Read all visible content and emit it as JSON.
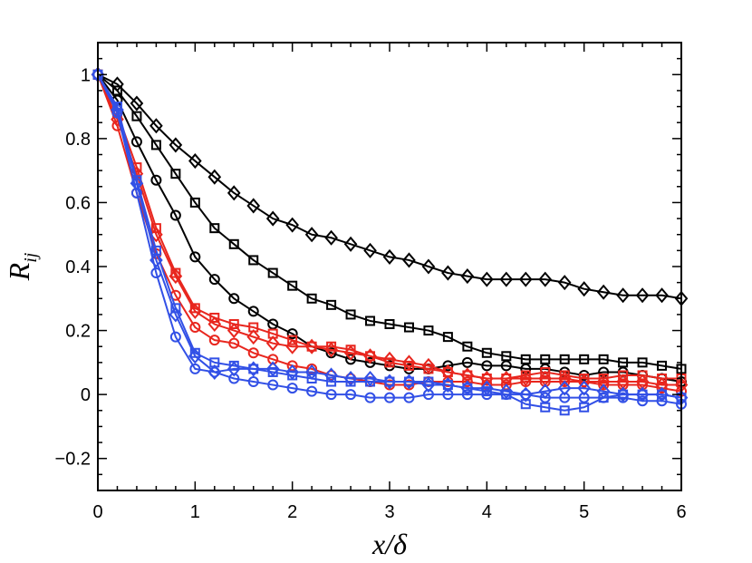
{
  "chart_data": {
    "type": "line",
    "xlabel": "x/δ",
    "ylabel": "R",
    "ylabel_subscript": "ij",
    "xlim": [
      0,
      6
    ],
    "ylim": [
      -0.3,
      1.1
    ],
    "xticks": [
      0,
      1,
      2,
      3,
      4,
      5,
      6
    ],
    "xtick_labels": [
      "0",
      "1",
      "2",
      "3",
      "4",
      "5",
      "6"
    ],
    "yticks": [
      -0.2,
      0,
      0.2,
      0.4,
      0.6,
      0.8,
      1
    ],
    "ytick_labels": [
      "−0.2",
      "0",
      "0.2",
      "0.4",
      "0.6",
      "0.8",
      "1"
    ],
    "grid": false,
    "legend": "none",
    "x": [
      0,
      0.2,
      0.4,
      0.6,
      0.8,
      1.0,
      1.2,
      1.4,
      1.6,
      1.8,
      2.0,
      2.2,
      2.4,
      2.6,
      2.8,
      3.0,
      3.2,
      3.4,
      3.6,
      3.8,
      4.0,
      4.2,
      4.4,
      4.6,
      4.8,
      5.0,
      5.2,
      5.4,
      5.6,
      5.8,
      6.0
    ],
    "series": [
      {
        "name": "black-diamond",
        "color": "#000000",
        "marker": "diamond",
        "values": [
          1.0,
          0.97,
          0.91,
          0.84,
          0.78,
          0.73,
          0.68,
          0.63,
          0.59,
          0.55,
          0.53,
          0.5,
          0.49,
          0.47,
          0.45,
          0.43,
          0.42,
          0.4,
          0.38,
          0.37,
          0.36,
          0.36,
          0.36,
          0.36,
          0.35,
          0.33,
          0.32,
          0.31,
          0.31,
          0.31,
          0.3
        ]
      },
      {
        "name": "black-square",
        "color": "#000000",
        "marker": "square",
        "values": [
          1.0,
          0.95,
          0.87,
          0.78,
          0.69,
          0.6,
          0.52,
          0.47,
          0.42,
          0.38,
          0.34,
          0.3,
          0.28,
          0.25,
          0.23,
          0.22,
          0.21,
          0.2,
          0.18,
          0.15,
          0.13,
          0.12,
          0.11,
          0.11,
          0.11,
          0.11,
          0.11,
          0.1,
          0.1,
          0.09,
          0.08
        ]
      },
      {
        "name": "black-circle",
        "color": "#000000",
        "marker": "circle",
        "values": [
          1.0,
          0.92,
          0.79,
          0.67,
          0.56,
          0.43,
          0.36,
          0.3,
          0.26,
          0.22,
          0.19,
          0.15,
          0.13,
          0.11,
          0.1,
          0.09,
          0.08,
          0.08,
          0.09,
          0.1,
          0.09,
          0.09,
          0.08,
          0.08,
          0.07,
          0.06,
          0.07,
          0.07,
          0.06,
          0.05,
          0.04
        ]
      },
      {
        "name": "red-diamond",
        "color": "#e8261e",
        "marker": "diamond",
        "values": [
          1.0,
          0.86,
          0.69,
          0.5,
          0.37,
          0.26,
          0.22,
          0.2,
          0.18,
          0.16,
          0.15,
          0.15,
          0.14,
          0.13,
          0.12,
          0.11,
          0.1,
          0.09,
          0.07,
          0.06,
          0.05,
          0.05,
          0.05,
          0.05,
          0.05,
          0.04,
          0.04,
          0.04,
          0.04,
          0.03,
          0.03
        ]
      },
      {
        "name": "red-square",
        "color": "#e8261e",
        "marker": "square",
        "values": [
          1.0,
          0.88,
          0.71,
          0.52,
          0.38,
          0.27,
          0.24,
          0.22,
          0.21,
          0.19,
          0.17,
          0.15,
          0.15,
          0.14,
          0.12,
          0.1,
          0.09,
          0.08,
          0.07,
          0.06,
          0.05,
          0.05,
          0.06,
          0.07,
          0.06,
          0.05,
          0.05,
          0.06,
          0.06,
          0.05,
          0.05
        ]
      },
      {
        "name": "red-circle",
        "color": "#e8261e",
        "marker": "circle",
        "values": [
          1.0,
          0.84,
          0.63,
          0.44,
          0.31,
          0.21,
          0.17,
          0.16,
          0.13,
          0.11,
          0.09,
          0.08,
          0.06,
          0.05,
          0.04,
          0.03,
          0.03,
          0.04,
          0.04,
          0.04,
          0.03,
          0.03,
          0.04,
          0.04,
          0.04,
          0.04,
          0.03,
          0.03,
          0.03,
          0.02,
          0.01
        ]
      },
      {
        "name": "blue-diamond",
        "color": "#3250e6",
        "marker": "diamond",
        "values": [
          1.0,
          0.89,
          0.66,
          0.42,
          0.25,
          0.12,
          0.07,
          0.08,
          0.08,
          0.08,
          0.07,
          0.07,
          0.06,
          0.05,
          0.05,
          0.04,
          0.04,
          0.03,
          0.03,
          0.02,
          0.02,
          0.01,
          0.0,
          0.01,
          0.02,
          0.02,
          0.01,
          0.0,
          0.0,
          0.0,
          -0.01
        ]
      },
      {
        "name": "blue-square",
        "color": "#3250e6",
        "marker": "square",
        "values": [
          1.0,
          0.9,
          0.67,
          0.45,
          0.27,
          0.13,
          0.1,
          0.09,
          0.08,
          0.07,
          0.06,
          0.05,
          0.04,
          0.04,
          0.04,
          0.04,
          0.04,
          0.04,
          0.03,
          0.02,
          0.01,
          0.0,
          -0.03,
          -0.04,
          -0.05,
          -0.04,
          -0.01,
          0.0,
          0.0,
          0.0,
          -0.01
        ]
      },
      {
        "name": "blue-circle",
        "color": "#3250e6",
        "marker": "circle",
        "values": [
          1.0,
          0.88,
          0.63,
          0.38,
          0.18,
          0.08,
          0.07,
          0.05,
          0.04,
          0.03,
          0.02,
          0.01,
          0.0,
          0.0,
          -0.01,
          -0.01,
          -0.01,
          0.0,
          0.0,
          0.0,
          0.0,
          0.0,
          0.0,
          -0.01,
          -0.01,
          -0.01,
          -0.01,
          -0.01,
          -0.02,
          -0.02,
          -0.03
        ]
      }
    ]
  }
}
